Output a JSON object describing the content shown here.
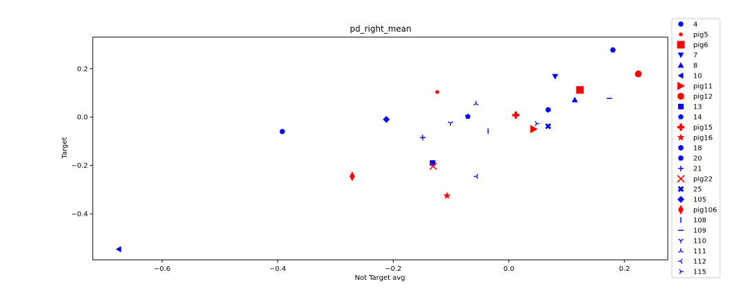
{
  "chart_data": {
    "type": "scatter",
    "title": "pd_right_mean",
    "xlabel": "Not Target avg",
    "ylabel": "Target",
    "xlim": [
      -0.72,
      0.275
    ],
    "ylim": [
      -0.59,
      0.33
    ],
    "x_ticks": [
      -0.6,
      -0.4,
      -0.2,
      0.0,
      0.2
    ],
    "x_tick_labels": [
      "−0.6",
      "−0.4",
      "−0.2",
      "0.0",
      "0.2"
    ],
    "y_ticks": [
      -0.4,
      -0.2,
      0.0,
      0.2
    ],
    "y_tick_labels": [
      "−0.4",
      "−0.2",
      "0.0",
      "0.2"
    ],
    "grid": false,
    "legend_position": "outside-right",
    "colors": {
      "blue": "#0000ff",
      "red": "#ff0000"
    },
    "series": [
      {
        "name": "4",
        "marker": "circle",
        "color": "#0000ff",
        "x": -0.392,
        "y": -0.06
      },
      {
        "name": "pig5",
        "marker": "circle-small",
        "color": "#ff0000",
        "x": -0.124,
        "y": 0.103
      },
      {
        "name": "pig6",
        "marker": "square-large",
        "color": "#ff0000",
        "x": 0.123,
        "y": 0.112
      },
      {
        "name": "7",
        "marker": "triangle-down",
        "color": "#0000ff",
        "x": 0.08,
        "y": 0.168
      },
      {
        "name": "8",
        "marker": "triangle-up",
        "color": "#0000ff",
        "x": 0.114,
        "y": 0.071
      },
      {
        "name": "10",
        "marker": "triangle-left",
        "color": "#0000ff",
        "x": -0.675,
        "y": -0.546
      },
      {
        "name": "pig11",
        "marker": "triangle-right-large",
        "color": "#ff0000",
        "x": 0.043,
        "y": -0.05
      },
      {
        "name": "pig12",
        "marker": "circle-large",
        "color": "#ff0000",
        "x": 0.224,
        "y": 0.178
      },
      {
        "name": "13",
        "marker": "square",
        "color": "#0000ff",
        "x": -0.132,
        "y": -0.19
      },
      {
        "name": "14",
        "marker": "pentagon",
        "color": "#0000ff",
        "x": -0.071,
        "y": 0.002
      },
      {
        "name": "pig15",
        "marker": "plus-filled",
        "color": "#ff0000",
        "x": 0.012,
        "y": 0.008
      },
      {
        "name": "pig16",
        "marker": "star",
        "color": "#ff0000",
        "x": -0.107,
        "y": -0.325
      },
      {
        "name": "18",
        "marker": "hexagon",
        "color": "#0000ff",
        "x": 0.068,
        "y": 0.03
      },
      {
        "name": "20",
        "marker": "hexagon2",
        "color": "#0000ff",
        "x": 0.18,
        "y": 0.277
      },
      {
        "name": "21",
        "marker": "plus",
        "color": "#0000ff",
        "x": -0.149,
        "y": -0.085
      },
      {
        "name": "pig22",
        "marker": "x",
        "color": "#ff0000",
        "x": -0.131,
        "y": -0.203
      },
      {
        "name": "25",
        "marker": "x-filled",
        "color": "#0000ff",
        "x": 0.068,
        "y": -0.038
      },
      {
        "name": "105",
        "marker": "diamond",
        "color": "#0000ff",
        "x": -0.212,
        "y": -0.01
      },
      {
        "name": "pig106",
        "marker": "thin-diamond",
        "color": "#ff0000",
        "x": -0.271,
        "y": -0.245
      },
      {
        "name": "108",
        "marker": "vline",
        "color": "#0000ff",
        "x": -0.036,
        "y": -0.058
      },
      {
        "name": "109",
        "marker": "hline",
        "color": "#0000ff",
        "x": 0.174,
        "y": 0.077
      },
      {
        "name": "110",
        "marker": "tri-down",
        "color": "#0000ff",
        "x": -0.101,
        "y": -0.025
      },
      {
        "name": "111",
        "marker": "tri-up",
        "color": "#0000ff",
        "x": -0.057,
        "y": 0.055
      },
      {
        "name": "112",
        "marker": "tri-left",
        "color": "#0000ff",
        "x": -0.056,
        "y": -0.245
      },
      {
        "name": "115",
        "marker": "tri-right",
        "color": "#0000ff",
        "x": 0.048,
        "y": -0.027
      }
    ]
  }
}
